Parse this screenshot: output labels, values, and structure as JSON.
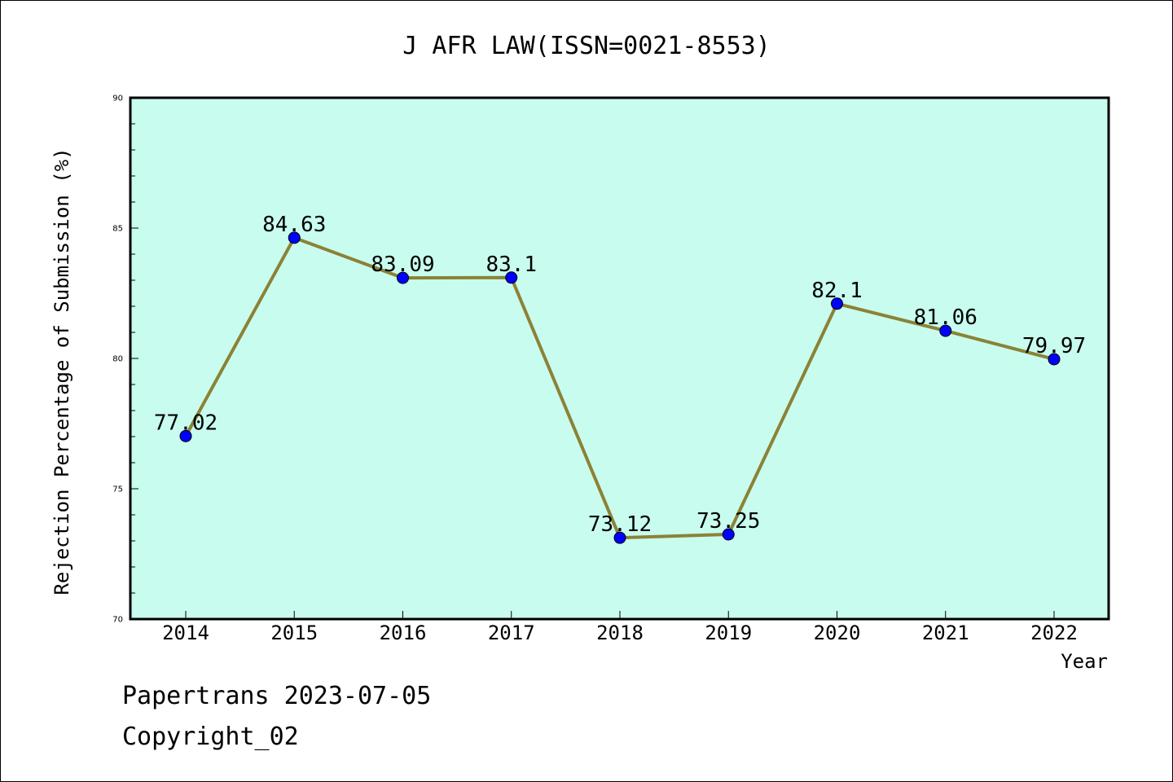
{
  "chart_data": {
    "type": "line",
    "title": "J AFR LAW(ISSN=0021-8553)",
    "xlabel": "Year",
    "ylabel": "Rejection Percentage of Submission (%)",
    "categories": [
      "2014",
      "2015",
      "2016",
      "2017",
      "2018",
      "2019",
      "2020",
      "2021",
      "2022"
    ],
    "values": [
      77.02,
      84.63,
      83.09,
      83.1,
      73.12,
      73.25,
      82.1,
      81.06,
      79.97
    ],
    "data_labels": [
      "77.02",
      "84.63",
      "83.09",
      "83.1",
      "73.12",
      "73.25",
      "82.1",
      "81.06",
      "79.97"
    ],
    "ylim": [
      70,
      90
    ],
    "yticks": [
      "70",
      "75",
      "80",
      "85",
      "90"
    ],
    "grid": false,
    "colors": {
      "plot_background": "#c8fcee",
      "line": "#8b8236",
      "marker": "#0000ff"
    }
  },
  "footer": {
    "line1": "Papertrans 2023-07-05",
    "line2": "Copyright_02"
  }
}
